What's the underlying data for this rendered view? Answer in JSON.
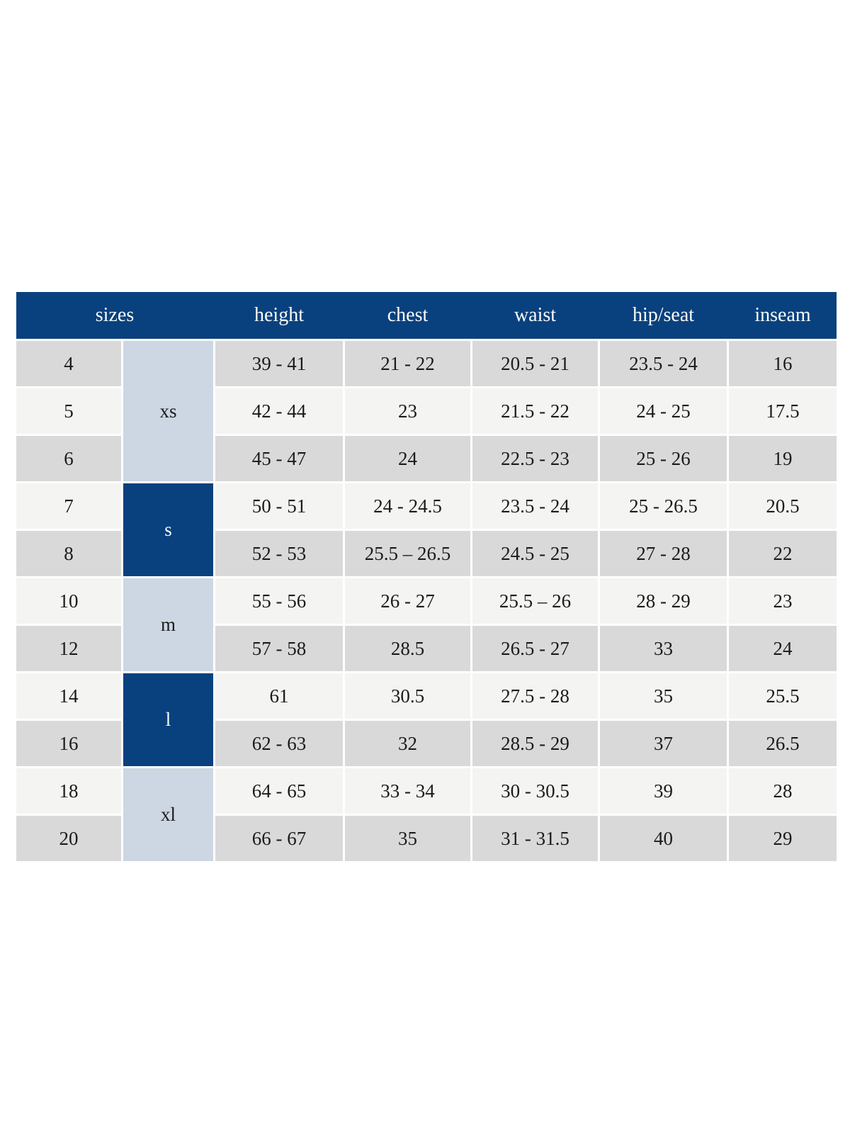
{
  "page_background": "#ffffff",
  "colors": {
    "header_bg": "#09417e",
    "header_text": "#fbfbf9",
    "group_light_bg": "#ccd7e3",
    "group_dark_bg": "#09417e",
    "group_dark_text": "#fbfbf9",
    "row_gray_bg": "#d9d9d9",
    "row_light_bg": "#f4f4f2",
    "cell_text": "#1b1b1b"
  },
  "table": {
    "headers": [
      "sizes",
      "height",
      "chest",
      "waist",
      "hip/seat",
      "inseam"
    ],
    "column_keys": [
      "height",
      "chest",
      "waist",
      "hip_seat",
      "inseam"
    ],
    "groups": [
      {
        "label": "xs",
        "shade": "light",
        "span": 3
      },
      {
        "label": "s",
        "shade": "dark",
        "span": 2
      },
      {
        "label": "m",
        "shade": "light",
        "span": 2
      },
      {
        "label": "l",
        "shade": "dark",
        "span": 2
      },
      {
        "label": "xl",
        "shade": "light",
        "span": 2
      }
    ],
    "rows": [
      {
        "size": "4",
        "height": "39 - 41",
        "chest": "21 - 22",
        "waist": "20.5 - 21",
        "hip_seat": "23.5 - 24",
        "inseam": "16"
      },
      {
        "size": "5",
        "height": "42 - 44",
        "chest": "23",
        "waist": "21.5 - 22",
        "hip_seat": "24 - 25",
        "inseam": "17.5"
      },
      {
        "size": "6",
        "height": "45 - 47",
        "chest": "24",
        "waist": "22.5 - 23",
        "hip_seat": "25 - 26",
        "inseam": "19"
      },
      {
        "size": "7",
        "height": "50 - 51",
        "chest": "24 - 24.5",
        "waist": "23.5 - 24",
        "hip_seat": "25 - 26.5",
        "inseam": "20.5"
      },
      {
        "size": "8",
        "height": "52 - 53",
        "chest": "25.5 – 26.5",
        "waist": "24.5 - 25",
        "hip_seat": "27 - 28",
        "inseam": "22"
      },
      {
        "size": "10",
        "height": "55 - 56",
        "chest": "26 - 27",
        "waist": "25.5 – 26",
        "hip_seat": "28 - 29",
        "inseam": "23"
      },
      {
        "size": "12",
        "height": "57 - 58",
        "chest": "28.5",
        "waist": "26.5 - 27",
        "hip_seat": "33",
        "inseam": "24"
      },
      {
        "size": "14",
        "height": "61",
        "chest": "30.5",
        "waist": "27.5 - 28",
        "hip_seat": "35",
        "inseam": "25.5"
      },
      {
        "size": "16",
        "height": "62 - 63",
        "chest": "32",
        "waist": "28.5 - 29",
        "hip_seat": "37",
        "inseam": "26.5"
      },
      {
        "size": "18",
        "height": "64 - 65",
        "chest": "33 - 34",
        "waist": "30 - 30.5",
        "hip_seat": "39",
        "inseam": "28"
      },
      {
        "size": "20",
        "height": "66 - 67",
        "chest": "35",
        "waist": "31 - 31.5",
        "hip_seat": "40",
        "inseam": "29"
      }
    ]
  }
}
